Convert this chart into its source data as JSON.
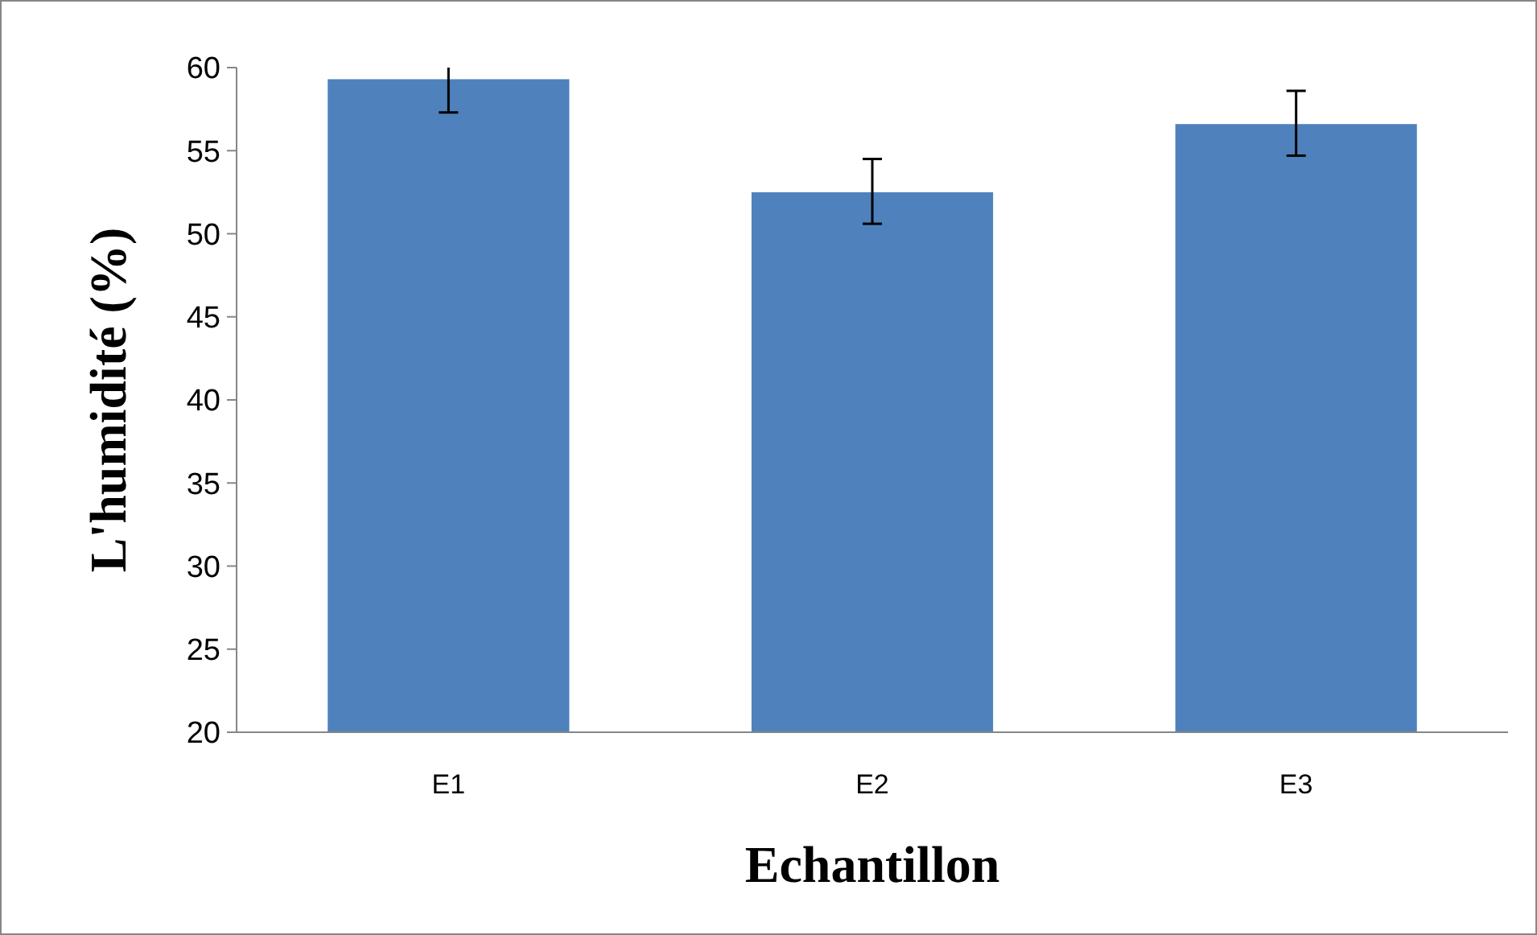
{
  "chart_data": {
    "type": "bar",
    "xlabel": "Echantillon",
    "ylabel": "L'humidité (%)",
    "categories": [
      "E1",
      "E2",
      "E3"
    ],
    "values": [
      59.3,
      52.5,
      56.6
    ],
    "color": "#4f81bd",
    "errors": [
      [
        57.3,
        60
      ],
      [
        50.6,
        54.5
      ],
      [
        54.7,
        58.6
      ]
    ],
    "ylim": [
      20,
      60
    ],
    "yticks": [
      20,
      25,
      30,
      35,
      40,
      45,
      50,
      55,
      60
    ],
    "grid": false
  }
}
